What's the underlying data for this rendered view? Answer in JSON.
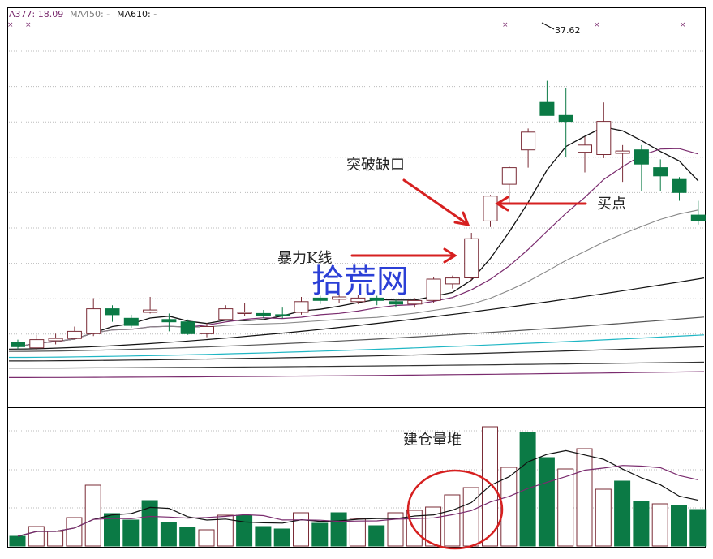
{
  "header": {
    "items": [
      {
        "label": "A377: 18.09",
        "color": "#7a2b6e"
      },
      {
        "label": "MA450: -",
        "color": "#777777"
      },
      {
        "label": "MA610: -",
        "color": "#111111"
      }
    ]
  },
  "annotations": {
    "gap_breakout": "突破缺口",
    "buy_point": "买点",
    "violent_candle": "暴力K线",
    "volume_pile": "建仓量堆",
    "watermark": "拾荒网",
    "peak_value": "37.62"
  },
  "colors": {
    "up": "#7a2b36",
    "down": "#0b7a45",
    "arrow": "#d62020",
    "circle": "#d62020",
    "grid": "#bbbbbb",
    "frame": "#000000"
  },
  "chart_data": [
    {
      "type": "candlestick",
      "title": "",
      "peak_label": 37.62,
      "candles": [
        {
          "o": 15.6,
          "c": 15.2,
          "h": 15.8,
          "l": 15.0
        },
        {
          "o": 15.1,
          "c": 15.8,
          "h": 16.2,
          "l": 14.9
        },
        {
          "o": 15.7,
          "c": 15.9,
          "h": 16.3,
          "l": 15.4
        },
        {
          "o": 15.9,
          "c": 16.5,
          "h": 16.9,
          "l": 15.8
        },
        {
          "o": 16.3,
          "c": 18.4,
          "h": 19.3,
          "l": 16.1
        },
        {
          "o": 18.4,
          "c": 17.9,
          "h": 18.7,
          "l": 17.3
        },
        {
          "o": 17.6,
          "c": 17.0,
          "h": 17.9,
          "l": 16.8
        },
        {
          "o": 18.1,
          "c": 18.3,
          "h": 19.4,
          "l": 18.0
        },
        {
          "o": 17.5,
          "c": 17.3,
          "h": 18.0,
          "l": 16.5
        },
        {
          "o": 17.3,
          "c": 16.3,
          "h": 17.5,
          "l": 16.2
        },
        {
          "o": 16.3,
          "c": 16.9,
          "h": 17.2,
          "l": 16.0
        },
        {
          "o": 17.5,
          "c": 18.4,
          "h": 18.7,
          "l": 17.4
        },
        {
          "o": 18.0,
          "c": 18.1,
          "h": 18.9,
          "l": 17.8
        },
        {
          "o": 18.0,
          "c": 17.8,
          "h": 18.3,
          "l": 17.6
        },
        {
          "o": 17.9,
          "c": 17.8,
          "h": 18.5,
          "l": 17.6
        },
        {
          "o": 18.1,
          "c": 19.0,
          "h": 19.4,
          "l": 17.9
        },
        {
          "o": 19.3,
          "c": 19.1,
          "h": 19.5,
          "l": 18.8
        },
        {
          "o": 19.2,
          "c": 19.4,
          "h": 19.7,
          "l": 18.9
        },
        {
          "o": 19.0,
          "c": 19.3,
          "h": 19.6,
          "l": 18.8
        },
        {
          "o": 19.3,
          "c": 19.1,
          "h": 19.5,
          "l": 18.7
        },
        {
          "o": 19.0,
          "c": 18.8,
          "h": 19.2,
          "l": 18.5
        },
        {
          "o": 18.8,
          "c": 19.1,
          "h": 19.3,
          "l": 18.5
        },
        {
          "o": 19.1,
          "c": 20.9,
          "h": 21.1,
          "l": 18.9
        },
        {
          "o": 20.5,
          "c": 21.0,
          "h": 21.2,
          "l": 20.1
        },
        {
          "o": 21.0,
          "c": 24.3,
          "h": 24.8,
          "l": 20.8
        },
        {
          "o": 25.8,
          "c": 27.9,
          "h": 28.0,
          "l": 25.3
        },
        {
          "o": 28.9,
          "c": 30.3,
          "h": 30.4,
          "l": 27.2
        },
        {
          "o": 31.8,
          "c": 33.3,
          "h": 33.6,
          "l": 30.3
        },
        {
          "o": 35.8,
          "c": 34.7,
          "h": 37.62,
          "l": 34.7
        },
        {
          "o": 34.7,
          "c": 34.2,
          "h": 37.0,
          "l": 31.2
        },
        {
          "o": 31.6,
          "c": 32.2,
          "h": 32.9,
          "l": 29.9
        },
        {
          "o": 31.4,
          "c": 34.2,
          "h": 35.8,
          "l": 31.1
        },
        {
          "o": 31.5,
          "c": 31.7,
          "h": 32.2,
          "l": 29.1
        },
        {
          "o": 31.8,
          "c": 30.6,
          "h": 32.2,
          "l": 28.3
        },
        {
          "o": 30.3,
          "c": 29.6,
          "h": 31.0,
          "l": 28.3
        },
        {
          "o": 29.3,
          "c": 28.2,
          "h": 29.5,
          "l": 27.5
        },
        {
          "o": 26.3,
          "c": 25.8,
          "h": 27.5,
          "l": 25.5
        }
      ]
    },
    {
      "type": "bar",
      "title": "",
      "volumes": [
        12,
        24,
        18,
        35,
        75,
        40,
        32,
        56,
        29,
        23,
        20,
        38,
        38,
        24,
        21,
        41,
        28,
        41,
        34,
        25,
        41,
        44,
        48,
        63,
        72,
        147,
        97,
        140,
        109,
        95,
        120,
        70,
        80,
        55,
        52,
        50,
        45
      ],
      "up": [
        false,
        true,
        true,
        true,
        true,
        false,
        false,
        false,
        false,
        false,
        true,
        true,
        false,
        false,
        false,
        true,
        false,
        false,
        true,
        false,
        true,
        true,
        true,
        true,
        true,
        true,
        true,
        false,
        false,
        true,
        true,
        true,
        false,
        false,
        true,
        false,
        false
      ]
    }
  ]
}
